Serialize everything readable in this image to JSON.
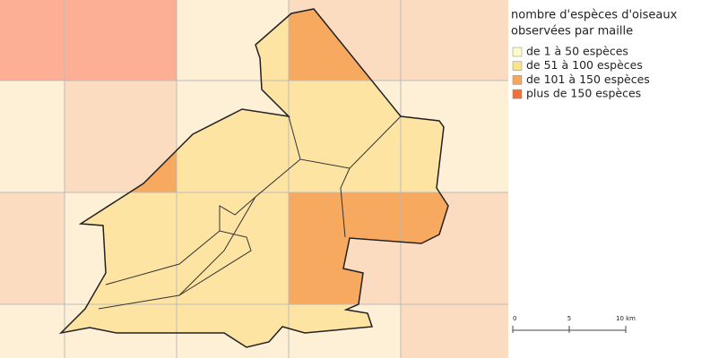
{
  "legend": {
    "title_lines": [
      "nombre d'espèces d'oiseaux",
      "observées par maille"
    ],
    "items": [
      {
        "label": "de 1 à 50 espèces",
        "color": "#fffbc6"
      },
      {
        "label": "de 51 à 100 espèces",
        "color": "#fde28c"
      },
      {
        "label": "de 101 à 150 espèces",
        "color": "#f6a55b"
      },
      {
        "label": "plus de 150 espèces",
        "color": "#f2703a"
      }
    ]
  },
  "scale_bar": {
    "labels": [
      "0",
      "5",
      "10 km"
    ]
  }
}
